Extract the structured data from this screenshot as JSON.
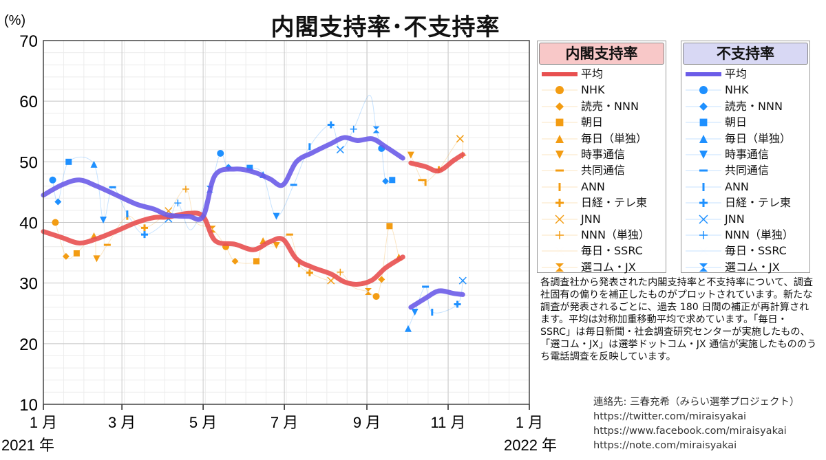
{
  "title": "内閣支持率･不支持率",
  "y_unit": "(%)",
  "year_start_label": "2021 年",
  "year_end_label": "2022 年",
  "legend_approve": {
    "heading": "内閣支持率",
    "heading_bg": "#f8c8c8",
    "line_color": "#e85050",
    "marker_color": "#f39c12"
  },
  "legend_disapprove": {
    "heading": "不支持率",
    "heading_bg": "#d8d8f4",
    "line_color": "#6b5ce8",
    "marker_color": "#1e90ff"
  },
  "legend_items": [
    {
      "label": "平均",
      "marker": "line"
    },
    {
      "label": "NHK",
      "marker": "circle"
    },
    {
      "label": "読売・NNN",
      "marker": "diamond"
    },
    {
      "label": "朝日",
      "marker": "square"
    },
    {
      "label": "毎日（単独）",
      "marker": "triangle-up"
    },
    {
      "label": "時事通信",
      "marker": "triangle-down"
    },
    {
      "label": "共同通信",
      "marker": "hbar"
    },
    {
      "label": "ANN",
      "marker": "vbar"
    },
    {
      "label": "日経・テレ東",
      "marker": "plus-bold"
    },
    {
      "label": "JNN",
      "marker": "x"
    },
    {
      "label": "NNN（単独）",
      "marker": "plus-thin"
    },
    {
      "label": "毎日・SSRC",
      "marker": "bowtie-h"
    },
    {
      "label": "選コム・JX",
      "marker": "bowtie-v"
    }
  ],
  "note": "各調査社から発表された内閣支持率と不支持率について、調査社固有の偏りを補正したものがプロットされています。新たな調査が発表されるごとに、過去 180 日間の補正が再計算されます。平均は対称加重移動平均で求めています。「毎日・SSRC」は毎日新聞・社会調査研究センターが実施したもの、「選コム・JX」は選挙ドットコム・JX 通信が実施したもののうち電話調査を反映しています。",
  "contact": [
    "連絡先: 三春充希（みらい選挙プロジェクト）",
    "https://twitter.com/miraisyakai",
    "https://www.facebook.com/miraisyakai",
    "https://note.com/miraisyakai"
  ],
  "chart_data": {
    "type": "line",
    "title": "内閣支持率･不支持率",
    "ylabel": "(%)",
    "ylim": [
      10,
      70
    ],
    "yticks": [
      10,
      20,
      30,
      40,
      50,
      60,
      70
    ],
    "xlim": [
      "2021-01-01",
      "2022-01-01"
    ],
    "xticks": [
      {
        "date": "2021-01-01",
        "label": "1 月"
      },
      {
        "date": "2021-03-01",
        "label": "3 月"
      },
      {
        "date": "2021-05-01",
        "label": "5 月"
      },
      {
        "date": "2021-07-01",
        "label": "7 月"
      },
      {
        "date": "2021-09-01",
        "label": "9 月"
      },
      {
        "date": "2021-11-01",
        "label": "11 月"
      },
      {
        "date": "2022-01-01",
        "label": "1 月"
      }
    ],
    "grid": true,
    "legend_position": "right",
    "series": [
      {
        "name": "内閣支持率 平均",
        "color": "#e85050",
        "segments": [
          [
            [
              "2021-01-01",
              38.5
            ],
            [
              "2021-01-15",
              37.5
            ],
            [
              "2021-01-28",
              36.6
            ],
            [
              "2021-02-10",
              37.3
            ],
            [
              "2021-02-25",
              38.6
            ],
            [
              "2021-03-12",
              40.0
            ],
            [
              "2021-03-25",
              40.8
            ],
            [
              "2021-04-05",
              40.9
            ],
            [
              "2021-04-20",
              41.5
            ],
            [
              "2021-05-01",
              41.0
            ],
            [
              "2021-05-10",
              37.0
            ],
            [
              "2021-05-25",
              36.4
            ],
            [
              "2021-06-08",
              35.5
            ],
            [
              "2021-06-20",
              36.8
            ],
            [
              "2021-06-30",
              37.2
            ],
            [
              "2021-07-10",
              34.0
            ],
            [
              "2021-07-22",
              32.6
            ],
            [
              "2021-08-05",
              31.5
            ],
            [
              "2021-08-15",
              30.2
            ],
            [
              "2021-08-25",
              29.8
            ],
            [
              "2021-09-05",
              30.5
            ],
            [
              "2021-09-15",
              32.5
            ],
            [
              "2021-09-28",
              34.3
            ]
          ],
          [
            [
              "2021-10-04",
              49.8
            ],
            [
              "2021-10-15",
              49.2
            ],
            [
              "2021-10-25",
              48.5
            ],
            [
              "2021-11-05",
              50.2
            ],
            [
              "2021-11-12",
              51.2
            ]
          ]
        ]
      },
      {
        "name": "不支持率 平均",
        "color": "#6b5ce8",
        "segments": [
          [
            [
              "2021-01-01",
              44.5
            ],
            [
              "2021-01-15",
              46.2
            ],
            [
              "2021-01-28",
              47.0
            ],
            [
              "2021-02-10",
              46.0
            ],
            [
              "2021-02-25",
              44.5
            ],
            [
              "2021-03-12",
              43.0
            ],
            [
              "2021-03-25",
              42.2
            ],
            [
              "2021-04-05",
              41.2
            ],
            [
              "2021-04-20",
              41.0
            ],
            [
              "2021-05-01",
              41.0
            ],
            [
              "2021-05-10",
              47.8
            ],
            [
              "2021-05-25",
              48.8
            ],
            [
              "2021-06-08",
              48.3
            ],
            [
              "2021-06-20",
              47.2
            ],
            [
              "2021-06-30",
              46.2
            ],
            [
              "2021-07-10",
              50.0
            ],
            [
              "2021-07-22",
              51.5
            ],
            [
              "2021-08-05",
              53.0
            ],
            [
              "2021-08-15",
              54.0
            ],
            [
              "2021-08-25",
              53.5
            ],
            [
              "2021-09-05",
              53.8
            ],
            [
              "2021-09-15",
              52.5
            ],
            [
              "2021-09-28",
              50.6
            ]
          ],
          [
            [
              "2021-10-04",
              26.0
            ],
            [
              "2021-10-15",
              27.5
            ],
            [
              "2021-10-25",
              28.7
            ],
            [
              "2021-11-05",
              28.3
            ],
            [
              "2021-11-12",
              28.1
            ]
          ]
        ]
      }
    ],
    "approve_points": [
      [
        "2021-01-10",
        40.0
      ],
      [
        "2021-01-18",
        34.4
      ],
      [
        "2021-01-26",
        34.9
      ],
      [
        "2021-02-08",
        37.8
      ],
      [
        "2021-02-10",
        34.0
      ],
      [
        "2021-02-18",
        36.3
      ],
      [
        "2021-03-05",
        41.0
      ],
      [
        "2021-03-18",
        39.1
      ],
      [
        "2021-04-05",
        41.9
      ],
      [
        "2021-04-18",
        45.5
      ],
      [
        "2021-04-25",
        40.2
      ],
      [
        "2021-05-08",
        38.9
      ],
      [
        "2021-05-18",
        36.0
      ],
      [
        "2021-05-25",
        33.6
      ],
      [
        "2021-06-10",
        33.6
      ],
      [
        "2021-06-15",
        37.0
      ],
      [
        "2021-06-25",
        36.2
      ],
      [
        "2021-07-05",
        38.0
      ],
      [
        "2021-07-12",
        33.2
      ],
      [
        "2021-07-20",
        31.7
      ],
      [
        "2021-08-05",
        30.4
      ],
      [
        "2021-08-12",
        31.8
      ],
      [
        "2021-08-22",
        29.3
      ],
      [
        "2021-09-02",
        28.6
      ],
      [
        "2021-09-08",
        27.8
      ],
      [
        "2021-09-12",
        30.6
      ],
      [
        "2021-09-18",
        39.4
      ],
      [
        "2021-09-25",
        34.3
      ],
      [
        "2021-10-04",
        51.1
      ],
      [
        "2021-10-12",
        47.0
      ],
      [
        "2021-10-15",
        46.6
      ],
      [
        "2021-10-25",
        48.7
      ],
      [
        "2021-11-10",
        53.8
      ],
      [
        "2021-11-12",
        51.1
      ]
    ],
    "disapprove_points": [
      [
        "2021-01-08",
        47.0
      ],
      [
        "2021-01-12",
        43.4
      ],
      [
        "2021-01-20",
        50.0
      ],
      [
        "2021-02-08",
        49.6
      ],
      [
        "2021-02-15",
        40.4
      ],
      [
        "2021-02-22",
        45.8
      ],
      [
        "2021-03-05",
        41.4
      ],
      [
        "2021-03-18",
        38.0
      ],
      [
        "2021-04-05",
        40.6
      ],
      [
        "2021-04-12",
        43.2
      ],
      [
        "2021-04-22",
        38.8
      ],
      [
        "2021-05-06",
        45.5
      ],
      [
        "2021-05-14",
        51.4
      ],
      [
        "2021-05-20",
        49.1
      ],
      [
        "2021-06-05",
        49.0
      ],
      [
        "2021-06-15",
        47.9
      ],
      [
        "2021-06-25",
        41.0
      ],
      [
        "2021-07-08",
        46.2
      ],
      [
        "2021-07-20",
        52.5
      ],
      [
        "2021-08-05",
        56.1
      ],
      [
        "2021-08-12",
        52.0
      ],
      [
        "2021-08-22",
        55.4
      ],
      [
        "2021-09-03",
        61.0
      ],
      [
        "2021-09-08",
        55.3
      ],
      [
        "2021-09-12",
        52.2
      ],
      [
        "2021-09-15",
        46.8
      ],
      [
        "2021-09-20",
        47.0
      ],
      [
        "2021-10-02",
        22.5
      ],
      [
        "2021-10-07",
        25.2
      ],
      [
        "2021-10-15",
        29.4
      ],
      [
        "2021-10-20",
        25.2
      ],
      [
        "2021-11-08",
        26.5
      ],
      [
        "2021-11-12",
        30.4
      ]
    ]
  }
}
